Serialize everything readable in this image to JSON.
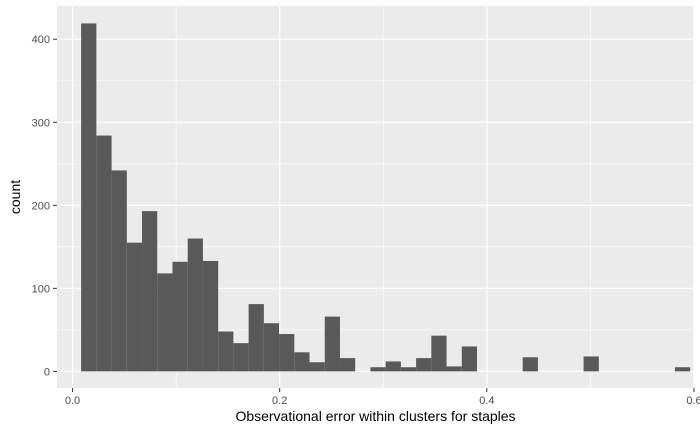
{
  "chart_data": {
    "type": "bar",
    "subtype": "histogram",
    "title": "",
    "xlabel": "Observational error within clusters for staples",
    "ylabel": "count",
    "xlim": [
      -0.015,
      0.6
    ],
    "ylim": [
      -20,
      440
    ],
    "x_ticks": [
      0.0,
      0.2,
      0.4,
      0.6
    ],
    "x_tick_labels": [
      "0.0",
      "0.2",
      "0.4",
      "0.6"
    ],
    "y_ticks": [
      0,
      100,
      200,
      300,
      400
    ],
    "y_tick_labels": [
      "0",
      "100",
      "200",
      "300",
      "400"
    ],
    "bin_width": 0.0147,
    "bins": [
      {
        "x0": 0.0083,
        "count": 419
      },
      {
        "x0": 0.023,
        "count": 284
      },
      {
        "x0": 0.0377,
        "count": 242
      },
      {
        "x0": 0.0524,
        "count": 155
      },
      {
        "x0": 0.0671,
        "count": 193
      },
      {
        "x0": 0.0818,
        "count": 118
      },
      {
        "x0": 0.0965,
        "count": 132
      },
      {
        "x0": 0.1112,
        "count": 160
      },
      {
        "x0": 0.1259,
        "count": 133
      },
      {
        "x0": 0.1406,
        "count": 48
      },
      {
        "x0": 0.1553,
        "count": 34
      },
      {
        "x0": 0.17,
        "count": 81
      },
      {
        "x0": 0.1847,
        "count": 58
      },
      {
        "x0": 0.1994,
        "count": 45
      },
      {
        "x0": 0.2141,
        "count": 23
      },
      {
        "x0": 0.2288,
        "count": 11
      },
      {
        "x0": 0.2435,
        "count": 66
      },
      {
        "x0": 0.2582,
        "count": 16
      },
      {
        "x0": 0.2876,
        "count": 5
      },
      {
        "x0": 0.3023,
        "count": 12
      },
      {
        "x0": 0.317,
        "count": 5
      },
      {
        "x0": 0.3317,
        "count": 16
      },
      {
        "x0": 0.3464,
        "count": 43
      },
      {
        "x0": 0.3611,
        "count": 6
      },
      {
        "x0": 0.3758,
        "count": 30
      },
      {
        "x0": 0.4346,
        "count": 17
      },
      {
        "x0": 0.4934,
        "count": 18
      },
      {
        "x0": 0.5816,
        "count": 5
      }
    ],
    "grid": true,
    "legend": "none",
    "colors": {
      "panel_background": "#ebebeb",
      "grid_major": "#ffffff",
      "bar_fill": "#595959"
    }
  }
}
